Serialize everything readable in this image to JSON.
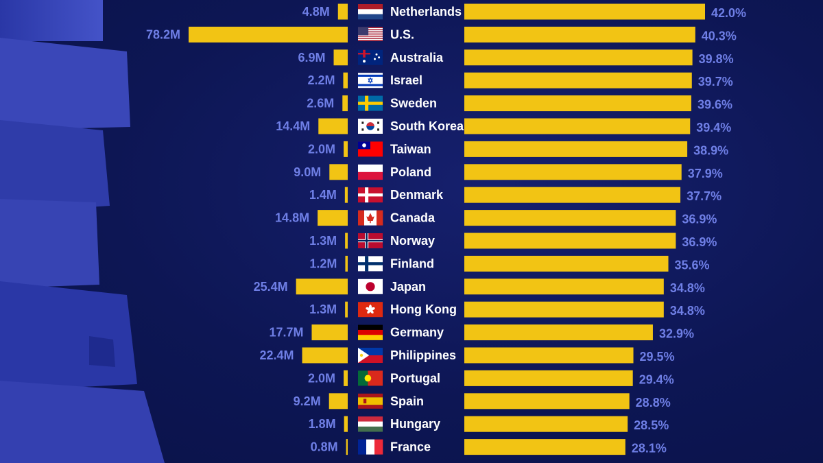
{
  "colors": {
    "background": "#0d1654",
    "bar": "#f2c414",
    "value_text": "#6f7fe6",
    "country_text": "#ffffff"
  },
  "chart_data": {
    "type": "bar",
    "orientation": "horizontal",
    "population_unit": "M",
    "percent_unit": "%",
    "rows": [
      {
        "country": "Netherlands",
        "flag": "netherlands-flag",
        "population_label": "4.8M",
        "population": 4.8,
        "percent_label": "42.0%",
        "percent": 42.0
      },
      {
        "country": "U.S.",
        "flag": "usa-flag",
        "population_label": "78.2M",
        "population": 78.2,
        "percent_label": "40.3%",
        "percent": 40.3
      },
      {
        "country": "Australia",
        "flag": "australia-flag",
        "population_label": "6.9M",
        "population": 6.9,
        "percent_label": "39.8%",
        "percent": 39.8
      },
      {
        "country": "Israel",
        "flag": "israel-flag",
        "population_label": "2.2M",
        "population": 2.2,
        "percent_label": "39.7%",
        "percent": 39.7
      },
      {
        "country": "Sweden",
        "flag": "sweden-flag",
        "population_label": "2.6M",
        "population": 2.6,
        "percent_label": "39.6%",
        "percent": 39.6
      },
      {
        "country": "South Korea",
        "flag": "south-korea-flag",
        "population_label": "14.4M",
        "population": 14.4,
        "percent_label": "39.4%",
        "percent": 39.4
      },
      {
        "country": "Taiwan",
        "flag": "taiwan-flag",
        "population_label": "2.0M",
        "population": 2.0,
        "percent_label": "38.9%",
        "percent": 38.9
      },
      {
        "country": "Poland",
        "flag": "poland-flag",
        "population_label": "9.0M",
        "population": 9.0,
        "percent_label": "37.9%",
        "percent": 37.9
      },
      {
        "country": "Denmark",
        "flag": "denmark-flag",
        "population_label": "1.4M",
        "population": 1.4,
        "percent_label": "37.7%",
        "percent": 37.7
      },
      {
        "country": "Canada",
        "flag": "canada-flag",
        "population_label": "14.8M",
        "population": 14.8,
        "percent_label": "36.9%",
        "percent": 36.9
      },
      {
        "country": "Norway",
        "flag": "norway-flag",
        "population_label": "1.3M",
        "population": 1.3,
        "percent_label": "36.9%",
        "percent": 36.9
      },
      {
        "country": "Finland",
        "flag": "finland-flag",
        "population_label": "1.2M",
        "population": 1.2,
        "percent_label": "35.6%",
        "percent": 35.6
      },
      {
        "country": "Japan",
        "flag": "japan-flag",
        "population_label": "25.4M",
        "population": 25.4,
        "percent_label": "34.8%",
        "percent": 34.8
      },
      {
        "country": "Hong Kong",
        "flag": "hong-kong-flag",
        "population_label": "1.3M",
        "population": 1.3,
        "percent_label": "34.8%",
        "percent": 34.8
      },
      {
        "country": "Germany",
        "flag": "germany-flag",
        "population_label": "17.7M",
        "population": 17.7,
        "percent_label": "32.9%",
        "percent": 32.9
      },
      {
        "country": "Philippines",
        "flag": "philippines-flag",
        "population_label": "22.4M",
        "population": 22.4,
        "percent_label": "29.5%",
        "percent": 29.5
      },
      {
        "country": "Portugal",
        "flag": "portugal-flag",
        "population_label": "2.0M",
        "population": 2.0,
        "percent_label": "29.4%",
        "percent": 29.4
      },
      {
        "country": "Spain",
        "flag": "spain-flag",
        "population_label": "9.2M",
        "population": 9.2,
        "percent_label": "28.8%",
        "percent": 28.8
      },
      {
        "country": "Hungary",
        "flag": "hungary-flag",
        "population_label": "1.8M",
        "population": 1.8,
        "percent_label": "28.5%",
        "percent": 28.5
      },
      {
        "country": "France",
        "flag": "france-flag",
        "population_label": "0.8M",
        "population": 0.8,
        "percent_label": "28.1%",
        "percent": 28.1
      }
    ]
  }
}
